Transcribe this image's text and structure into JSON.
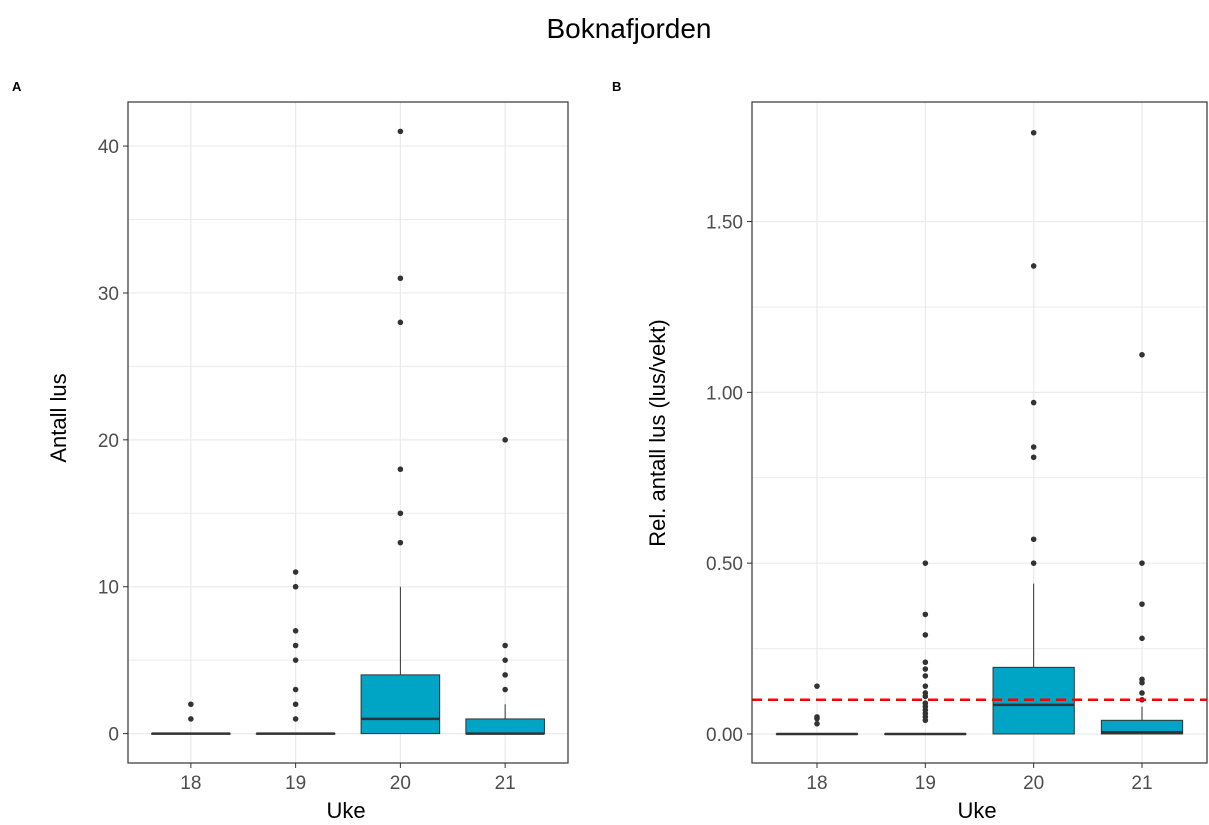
{
  "figure": {
    "title": "Boknafjorden"
  },
  "colors": {
    "box_fill": "#00a5c6",
    "outlier": "#333333",
    "threshold_line": "#ff0000",
    "grid": "#ebebeb",
    "border": "#333333"
  },
  "chart_data": [
    {
      "panel": "A",
      "type": "box",
      "xlabel": "Uke",
      "ylabel": "Antall lus",
      "categories": [
        "18",
        "19",
        "20",
        "21"
      ],
      "ylim": [
        -2,
        43
      ],
      "yticks": [
        0,
        10,
        20,
        30,
        40
      ],
      "ytick_labels": [
        "0",
        "10",
        "20",
        "30",
        "40"
      ],
      "boxes": [
        {
          "category": "18",
          "q1": 0,
          "median": 0,
          "q3": 0,
          "whisker_low": 0,
          "whisker_high": 0,
          "outliers": [
            1,
            2
          ]
        },
        {
          "category": "19",
          "q1": 0,
          "median": 0,
          "q3": 0,
          "whisker_low": 0,
          "whisker_high": 0,
          "outliers": [
            1,
            2,
            3,
            5,
            6,
            7,
            10,
            11
          ]
        },
        {
          "category": "20",
          "q1": 0,
          "median": 1,
          "q3": 4,
          "whisker_low": 0,
          "whisker_high": 10,
          "outliers": [
            13,
            15,
            18,
            28,
            31,
            41
          ]
        },
        {
          "category": "21",
          "q1": 0,
          "median": 0,
          "q3": 1,
          "whisker_low": 0,
          "whisker_high": 2,
          "outliers": [
            3,
            4,
            5,
            6,
            20
          ]
        }
      ],
      "grid": true
    },
    {
      "panel": "B",
      "type": "box",
      "xlabel": "Uke",
      "ylabel": "Rel. antall lus (lus/vekt)",
      "categories": [
        "18",
        "19",
        "20",
        "21"
      ],
      "ylim": [
        -0.085,
        1.85
      ],
      "yticks": [
        0,
        0.5,
        1.0,
        1.5
      ],
      "ytick_labels": [
        "0.00",
        "0.50",
        "1.00",
        "1.50"
      ],
      "hline": {
        "y": 0.1,
        "style": "dashed"
      },
      "boxes": [
        {
          "category": "18",
          "q1": 0,
          "median": 0,
          "q3": 0,
          "whisker_low": 0,
          "whisker_high": 0,
          "outliers": [
            0.03,
            0.045,
            0.05,
            0.14
          ]
        },
        {
          "category": "19",
          "q1": 0,
          "median": 0,
          "q3": 0,
          "whisker_low": 0,
          "whisker_high": 0,
          "outliers": [
            0.04,
            0.05,
            0.06,
            0.07,
            0.08,
            0.09,
            0.11,
            0.12,
            0.14,
            0.17,
            0.19,
            0.21,
            0.29,
            0.35,
            0.5
          ]
        },
        {
          "category": "20",
          "q1": 0,
          "median": 0.085,
          "q3": 0.195,
          "whisker_low": 0,
          "whisker_high": 0.44,
          "outliers": [
            0.5,
            0.57,
            0.81,
            0.84,
            0.97,
            1.37,
            1.76
          ]
        },
        {
          "category": "21",
          "q1": 0,
          "median": 0.005,
          "q3": 0.04,
          "whisker_low": 0,
          "whisker_high": 0.08,
          "outliers": [
            0.1,
            0.12,
            0.15,
            0.16,
            0.28,
            0.38,
            0.5,
            1.11
          ]
        }
      ],
      "grid": true
    }
  ]
}
